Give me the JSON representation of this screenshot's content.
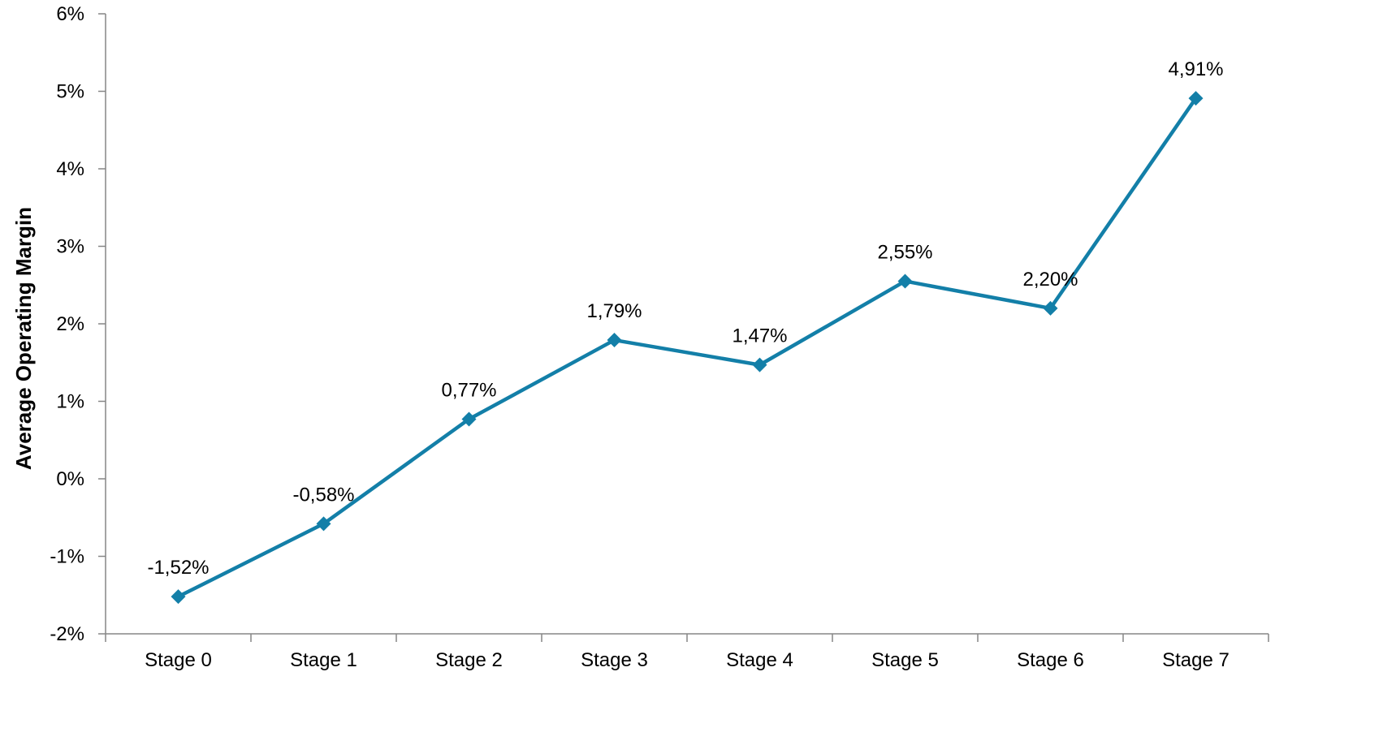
{
  "chart_data": {
    "type": "line",
    "title": "",
    "xlabel": "",
    "ylabel": "Average Operating Margin",
    "categories": [
      "Stage 0",
      "Stage 1",
      "Stage 2",
      "Stage 3",
      "Stage 4",
      "Stage 5",
      "Stage 6",
      "Stage 7"
    ],
    "series": [
      {
        "values": [
          -1.52,
          -0.58,
          0.77,
          1.79,
          1.47,
          2.55,
          2.2,
          4.91
        ],
        "labels": [
          "-1,52%",
          "-0,58%",
          "0,77%",
          "1,79%",
          "1,47%",
          "2,55%",
          "2,20%",
          "4,91%"
        ],
        "color": "#137FA8",
        "marker": "diamond"
      }
    ],
    "ylim": [
      -2,
      6
    ],
    "yticks": [
      -2,
      -1,
      0,
      1,
      2,
      3,
      4,
      5,
      6
    ],
    "ytick_labels": [
      "-2%",
      "-1%",
      "0%",
      "1%",
      "2%",
      "3%",
      "4%",
      "5%",
      "6%"
    ],
    "grid": false,
    "legend": "none",
    "axis_color": "#868686"
  }
}
